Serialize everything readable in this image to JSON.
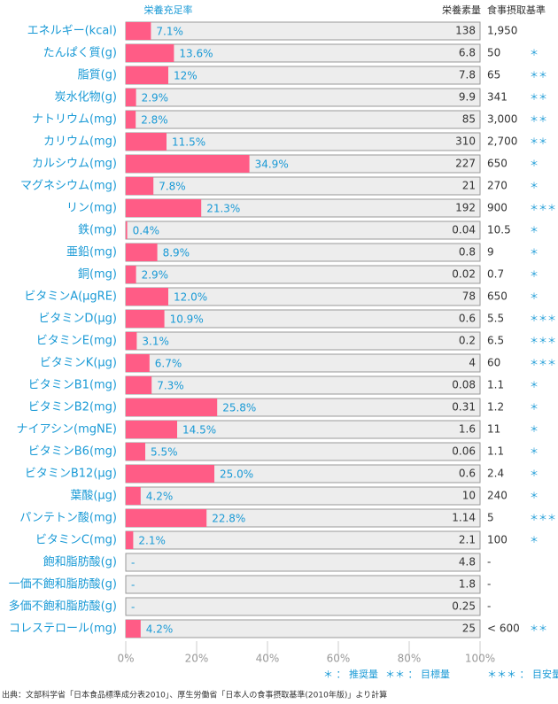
{
  "chart_data": {
    "type": "bar",
    "value_header": "栄養充足率",
    "amount_header": "栄養素量",
    "standard_header": "食事摂取基準",
    "categories": [
      "エネルギー(kcal)",
      "たんぱく質(g)",
      "脂質(g)",
      "炭水化物(g)",
      "ナトリウム(mg)",
      "カリウム(mg)",
      "カルシウム(mg)",
      "マグネシウム(mg)",
      "リン(mg)",
      "鉄(mg)",
      "亜鉛(mg)",
      "銅(mg)",
      "ビタミンA(μgRE)",
      "ビタミンD(μg)",
      "ビタミンE(mg)",
      "ビタミンK(μg)",
      "ビタミンB1(mg)",
      "ビタミンB2(mg)",
      "ナイアシン(mgNE)",
      "ビタミンB6(mg)",
      "ビタミンB12(μg)",
      "葉酸(μg)",
      "パンテトン酸(mg)",
      "ビタミンC(mg)",
      "飽和脂肪酸(g)",
      "一価不飽和脂肪酸(g)",
      "多価不飽和脂肪酸(g)",
      "コレステロール(mg)"
    ],
    "values": [
      7.1,
      13.6,
      12,
      2.9,
      2.8,
      11.5,
      34.9,
      7.8,
      21.3,
      0.4,
      8.9,
      2.9,
      12.0,
      10.9,
      3.1,
      6.7,
      7.3,
      25.8,
      14.5,
      5.5,
      25.0,
      4.2,
      22.8,
      2.1,
      null,
      null,
      null,
      4.2
    ],
    "value_labels": [
      "7.1%",
      "13.6%",
      "12%",
      "2.9%",
      "2.8%",
      "11.5%",
      "34.9%",
      "7.8%",
      "21.3%",
      "0.4%",
      "8.9%",
      "2.9%",
      "12.0%",
      "10.9%",
      "3.1%",
      "6.7%",
      "7.3%",
      "25.8%",
      "14.5%",
      "5.5%",
      "25.0%",
      "4.2%",
      "22.8%",
      "2.1%",
      "-",
      "-",
      "-",
      "4.2%"
    ],
    "amounts": [
      138,
      6.8,
      7.8,
      9.9,
      85,
      310,
      227,
      21,
      192,
      0.04,
      0.8,
      0.02,
      78,
      0.6,
      0.2,
      4,
      0.08,
      0.31,
      1.6,
      0.06,
      0.6,
      10,
      1.14,
      2.1,
      4.8,
      1.8,
      0.25,
      25
    ],
    "standards": [
      "1,950",
      "50",
      "65",
      "341",
      "3,000",
      "2,700",
      "650",
      "270",
      "900",
      "10.5",
      "9",
      "0.7",
      "650",
      "5.5",
      "6.5",
      "60",
      "1.1",
      "1.2",
      "11",
      "1.1",
      "2.4",
      "240",
      "5",
      "100",
      "-",
      "-",
      "-",
      "< 600"
    ],
    "standard_marks": [
      "",
      "＊",
      "＊＊",
      "＊＊",
      "＊＊",
      "＊＊",
      "＊",
      "＊",
      "＊＊＊",
      "＊",
      "＊",
      "＊",
      "＊",
      "＊＊＊",
      "＊＊＊",
      "＊＊＊",
      "＊",
      "＊",
      "＊",
      "＊",
      "＊",
      "＊",
      "＊＊＊",
      "＊",
      "",
      "",
      "",
      "＊＊"
    ],
    "color": "#ff5c86",
    "xlim": [
      0,
      100
    ],
    "xticks": [
      {
        "value": 0,
        "label": "0%"
      },
      {
        "value": 20,
        "label": "20%"
      },
      {
        "value": 40,
        "label": "40%"
      },
      {
        "value": 60,
        "label": "60%"
      },
      {
        "value": 80,
        "label": "80%"
      },
      {
        "value": 100,
        "label": "100%"
      }
    ],
    "legend": [
      "＊ ： 推奨量",
      "＊＊ ： 目標量",
      "＊＊＊ ： 目安量"
    ],
    "source": "出典：文部科学省「日本食品標準成分表2010」、厚生労働省「日本人の食事摂取基準(2010年版)」より計算"
  }
}
